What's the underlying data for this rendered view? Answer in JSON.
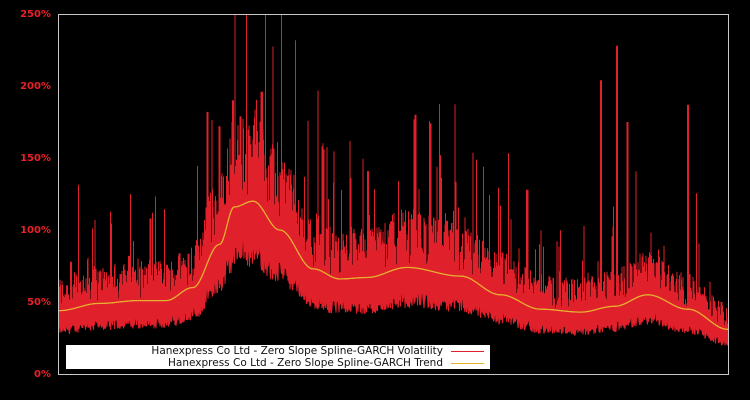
{
  "chart_data": {
    "type": "line",
    "title": "",
    "xlabel": "",
    "ylabel": "",
    "ylim": [
      0,
      250
    ],
    "y_ticks": [
      "0%",
      "50%",
      "100%",
      "150%",
      "200%",
      "250%"
    ],
    "grid": false,
    "legend_position": "bottom-left (inside plot)",
    "series": [
      {
        "name": "Hanexpress Co Ltd - Zero Slope Spline-GARCH Volatility",
        "color": "#e0202a",
        "description": "Noisy daily volatility series, baseline 30-80%, clustered spikes",
        "notable_peaks": [
          {
            "x_frac": 0.018,
            "value": 78
          },
          {
            "x_frac": 0.105,
            "value": 82
          },
          {
            "x_frac": 0.137,
            "value": 108
          },
          {
            "x_frac": 0.222,
            "value": 182
          },
          {
            "x_frac": 0.24,
            "value": 172
          },
          {
            "x_frac": 0.26,
            "value": 190
          },
          {
            "x_frac": 0.303,
            "value": 196
          },
          {
            "x_frac": 0.395,
            "value": 156
          },
          {
            "x_frac": 0.462,
            "value": 141
          },
          {
            "x_frac": 0.533,
            "value": 180
          },
          {
            "x_frac": 0.555,
            "value": 174
          },
          {
            "x_frac": 0.7,
            "value": 128
          },
          {
            "x_frac": 0.81,
            "value": 204
          },
          {
            "x_frac": 0.834,
            "value": 228
          },
          {
            "x_frac": 0.85,
            "value": 175
          },
          {
            "x_frac": 0.94,
            "value": 187
          },
          {
            "x_frac": 0.99,
            "value": 50
          }
        ]
      },
      {
        "name": "Hanexpress Co Ltd - Zero Slope Spline-GARCH Trend",
        "color": "#e6b030",
        "x_frac": [
          0.0,
          0.06,
          0.12,
          0.16,
          0.2,
          0.24,
          0.262,
          0.29,
          0.33,
          0.38,
          0.42,
          0.46,
          0.52,
          0.6,
          0.66,
          0.72,
          0.78,
          0.83,
          0.88,
          0.94,
          1.0
        ],
        "values": [
          44,
          49,
          51,
          51,
          60,
          90,
          116,
          120,
          100,
          73,
          66,
          67,
          74,
          68,
          55,
          45,
          43,
          47,
          55,
          45,
          31
        ]
      }
    ]
  },
  "axis": {
    "y_labels": [
      "250%",
      "200%",
      "150%",
      "100%",
      "50%",
      "0%"
    ]
  },
  "legend": {
    "items": [
      {
        "label": "Hanexpress Co Ltd - Zero Slope Spline-GARCH Volatility",
        "color": "#e0202a"
      },
      {
        "label": "Hanexpress Co Ltd - Zero Slope Spline-GARCH Trend",
        "color": "#e6b030"
      }
    ]
  },
  "colors": {
    "background": "#000000",
    "frame": "#c8c8c8",
    "tick_label": "#e8202a",
    "volatility": "#e0202a",
    "trend": "#e6b030"
  }
}
